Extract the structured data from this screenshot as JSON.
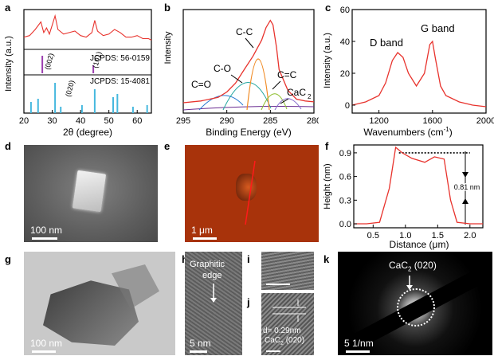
{
  "panel_labels": {
    "a": "a",
    "b": "b",
    "c": "c",
    "d": "d",
    "e": "e",
    "f": "f",
    "g": "g",
    "h": "h",
    "i": "i",
    "j": "j",
    "k": "k"
  },
  "panel_a": {
    "ylabel": "Intensity (a.u.)",
    "xlabel": "2θ (degree)",
    "xticks": [
      "20",
      "30",
      "40",
      "50",
      "60"
    ],
    "ref1": "JCPDS: 56-0159",
    "ref2": "JCPDS: 15-4081",
    "peak_002": "(002)",
    "peak_101": "(101)",
    "peak_020": "(020)",
    "line_color": "#e8332d",
    "ref1_color": "#9c3fb0",
    "ref2_color": "#46b8de"
  },
  "panel_b": {
    "ylabel": "Intensity",
    "xlabel": "Binding Energy (eV)",
    "xticks": [
      "295",
      "290",
      "285",
      "280"
    ],
    "ann_cc": "C-C",
    "ann_co": "C-O",
    "ann_c_o": "C=O",
    "ann_c_c": "C=C",
    "ann_cac2": "CaC",
    "ann_cac2_sub": "2"
  },
  "panel_c": {
    "ylabel": "Intensity (a.u.)",
    "xlabel": "Wavenumbers (cm",
    "xlabel_sup": "-1",
    "xlabel_end": ")",
    "yticks": [
      "0",
      "20",
      "40",
      "60"
    ],
    "xticks": [
      "1200",
      "1600",
      "2000"
    ],
    "d_band": "D band",
    "g_band": "G band"
  },
  "panel_d": {
    "scale": "100 nm"
  },
  "panel_e": {
    "scale": "1 μm"
  },
  "panel_f": {
    "ylabel": "Height (nm)",
    "xlabel": "Distance (μm)",
    "yticks": [
      "0.0",
      "0.3",
      "0.6",
      "0.9"
    ],
    "xticks": [
      "0.5",
      "1.0",
      "1.5",
      "2.0"
    ],
    "annotation": "0.81 nm"
  },
  "panel_g": {
    "scale": "100 nm"
  },
  "panel_h": {
    "text1": "Graphitic",
    "text2": "edge",
    "scale": "5 nm"
  },
  "panel_j": {
    "dspacing": "d= 0.29nm",
    "plane": "CaC",
    "plane_sub": "2",
    "plane_end": " (020)"
  },
  "panel_k": {
    "label": "CaC",
    "label_sub": "2",
    "label_end": " (020)",
    "scale": "5 1/nm"
  },
  "chart_data": [
    {
      "type": "line",
      "panel": "a",
      "xlabel": "2θ (degree)",
      "ylabel": "Intensity (a.u.)",
      "xlim": [
        20,
        65
      ],
      "x": [
        20,
        22,
        24,
        26,
        27,
        28,
        29,
        30,
        31,
        32,
        34,
        36,
        38,
        40,
        42,
        44,
        45,
        46,
        48,
        50,
        52,
        54,
        56,
        58,
        60,
        62,
        64,
        65
      ],
      "y": [
        0.3,
        0.35,
        0.55,
        0.8,
        0.45,
        0.6,
        0.4,
        0.7,
        1.0,
        0.55,
        0.4,
        0.45,
        0.5,
        0.35,
        0.3,
        0.45,
        0.85,
        0.5,
        0.35,
        0.4,
        0.55,
        0.45,
        0.3,
        0.3,
        0.35,
        0.25,
        0.25,
        0.2
      ],
      "reference_peaks_56_0159": [
        26.5,
        44.5
      ],
      "reference_peaks_15_4081": [
        22.5,
        25.0,
        31.0,
        33.0,
        40.5,
        45.0,
        51.5,
        53.0,
        58.5,
        63.5
      ]
    },
    {
      "type": "line",
      "panel": "b",
      "xlabel": "Binding Energy (eV)",
      "ylabel": "Intensity",
      "xlim": [
        295,
        280
      ],
      "x": [
        295,
        293,
        291,
        290,
        289,
        288,
        287,
        286,
        285.5,
        285,
        284.7,
        284.3,
        284,
        283,
        282,
        281,
        280
      ],
      "y": [
        0.08,
        0.1,
        0.14,
        0.2,
        0.3,
        0.45,
        0.6,
        0.78,
        0.92,
        1.0,
        0.95,
        0.7,
        0.45,
        0.22,
        0.12,
        0.1,
        0.09
      ]
    },
    {
      "type": "line",
      "panel": "c",
      "xlabel": "Wavenumbers (cm-1)",
      "ylabel": "Intensity (a.u.)",
      "xlim": [
        1000,
        2000
      ],
      "ylim": [
        -5,
        60
      ],
      "x": [
        1000,
        1100,
        1200,
        1250,
        1300,
        1340,
        1380,
        1420,
        1480,
        1540,
        1580,
        1600,
        1620,
        1660,
        1700,
        1800,
        1900,
        2000
      ],
      "y": [
        0,
        2,
        6,
        14,
        28,
        33,
        30,
        20,
        12,
        20,
        38,
        40,
        30,
        12,
        6,
        2,
        0,
        -1
      ]
    },
    {
      "type": "line",
      "panel": "f",
      "xlabel": "Distance (μm)",
      "ylabel": "Height (nm)",
      "xlim": [
        0.2,
        2.2
      ],
      "ylim": [
        -0.05,
        1.0
      ],
      "x": [
        0.2,
        0.4,
        0.6,
        0.75,
        0.85,
        0.95,
        1.1,
        1.3,
        1.45,
        1.6,
        1.7,
        1.8,
        2.0,
        2.2
      ],
      "y": [
        0.0,
        0.0,
        0.02,
        0.45,
        0.97,
        0.9,
        0.83,
        0.78,
        0.85,
        0.82,
        0.3,
        0.02,
        0.0,
        0.0
      ],
      "reference_level": 0.9
    }
  ]
}
